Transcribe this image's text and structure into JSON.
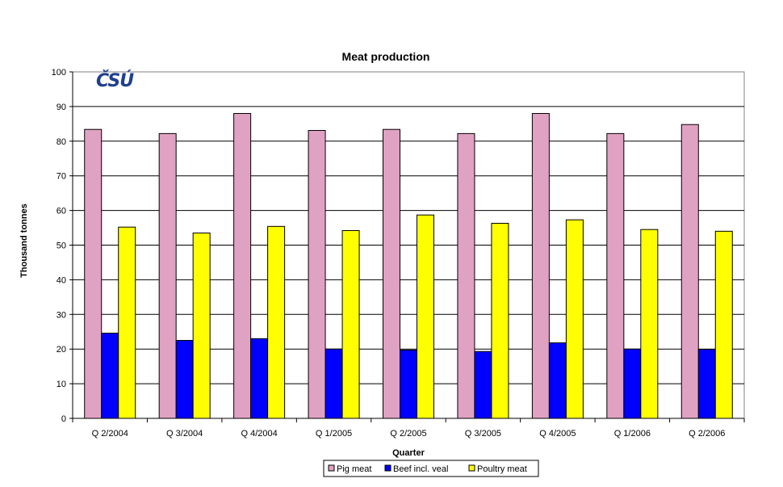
{
  "chart_data": {
    "type": "bar",
    "title": "Meat production",
    "xlabel": "Quarter",
    "ylabel": "Thousand tonnes",
    "ylim": [
      0,
      100
    ],
    "yticks": [
      0,
      10,
      20,
      30,
      40,
      50,
      60,
      70,
      80,
      90,
      100
    ],
    "grid": true,
    "legend_position": "bottom",
    "categories": [
      "Q 2/2004",
      "Q 3/2004",
      "Q 4/2004",
      "Q 1/2005",
      "Q 2/2005",
      "Q 3/2005",
      "Q 4/2005",
      "Q 1/2006",
      "Q 2/2006"
    ],
    "series": [
      {
        "name": "Pig meat",
        "color": "#e0a2c2",
        "values": [
          83.4,
          82.2,
          88.0,
          83.1,
          83.4,
          82.2,
          88.0,
          82.2,
          84.8
        ]
      },
      {
        "name": "Beef incl. veal",
        "color": "#0000ff",
        "values": [
          24.6,
          22.5,
          23.0,
          20.0,
          19.7,
          19.3,
          21.8,
          20.0,
          19.9
        ]
      },
      {
        "name": "Poultry meat",
        "color": "#ffff00",
        "values": [
          55.2,
          53.5,
          55.4,
          54.2,
          58.7,
          56.3,
          57.3,
          54.5,
          54.0
        ]
      }
    ]
  },
  "logo": {
    "text": "ČSÚ"
  }
}
